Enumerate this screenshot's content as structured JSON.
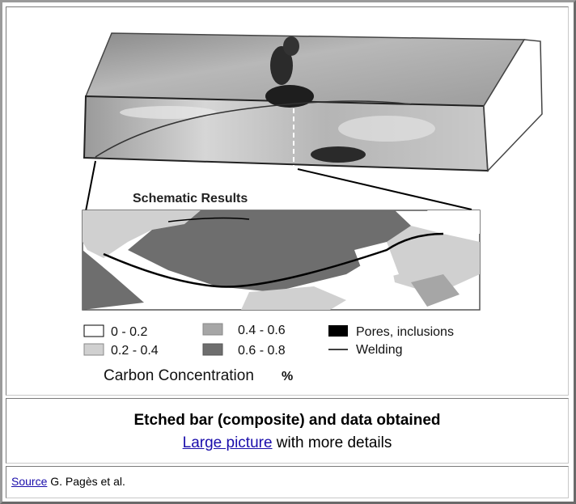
{
  "figure": {
    "schematic_title": "Schematic Results",
    "legend": [
      {
        "swatch": "white",
        "label": "0 - 0.2"
      },
      {
        "swatch": "light-gray",
        "label": "0.2 - 0.4"
      },
      {
        "swatch": "mid-gray",
        "label": "0.4 - 0.6"
      },
      {
        "swatch": "dark-gray",
        "label": "0.6 - 0.8"
      },
      {
        "swatch": "black",
        "label": "Pores, inclusions"
      },
      {
        "swatch": "line",
        "label": "Welding"
      }
    ],
    "concentration_label": "Carbon Concentration",
    "unit": "%"
  },
  "caption": {
    "title": "Etched bar (composite) and data obtained",
    "link_text": "Large picture",
    "suffix": " with more details"
  },
  "source": {
    "link_text": "Source",
    "text": " G. Pagès et al."
  },
  "colors": {
    "white": "#ffffff",
    "light-gray": "#d0d0d0",
    "mid-gray": "#a6a6a6",
    "dark-gray": "#6e6e6e",
    "black": "#000000",
    "link": "#1a0dab"
  }
}
